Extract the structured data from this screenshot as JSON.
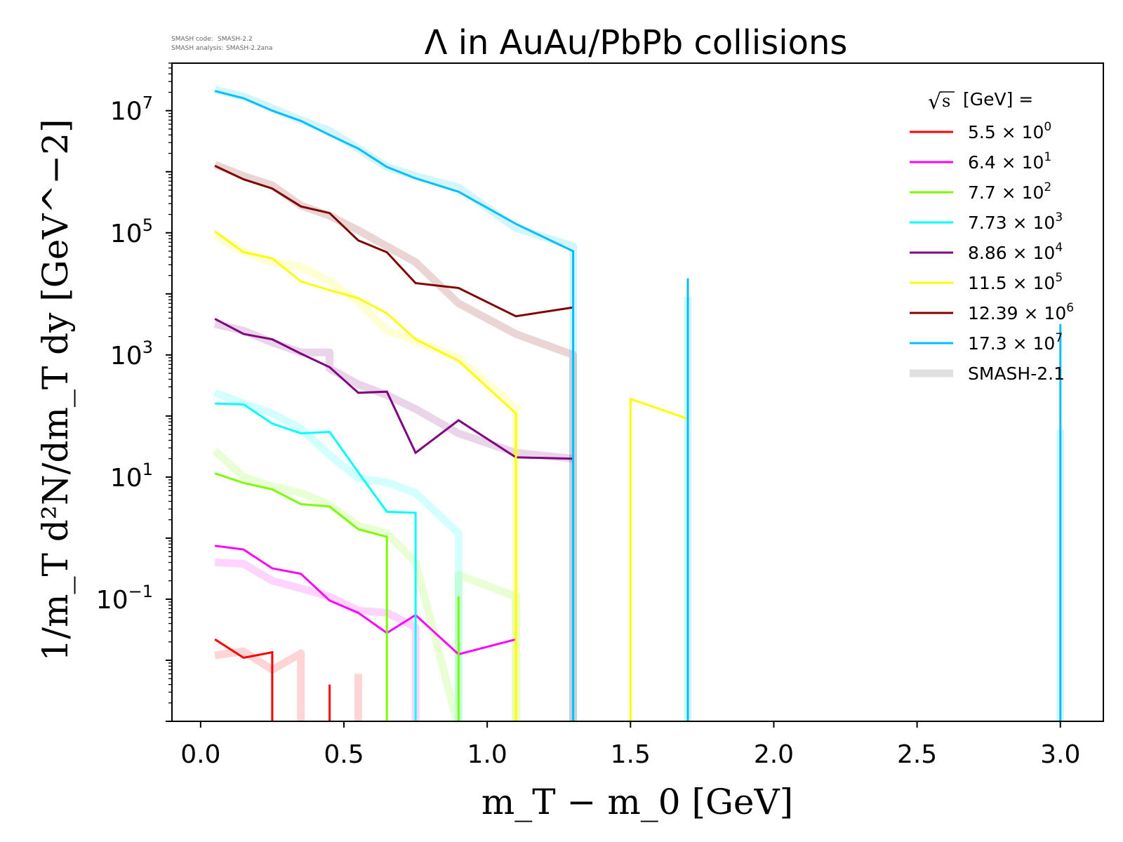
{
  "header": {
    "smash_code_label": "SMASH code:",
    "smash_code_value": "SMASH-2.2",
    "smash_analysis_label": "SMASH analysis:",
    "smash_analysis_value": "SMASH-2.2ana"
  },
  "chart_data": {
    "type": "line",
    "title": "Λ in AuAu/PbPb collisions",
    "xlabel": "m_T − m_0 [GeV]",
    "ylabel": "1/m_T d²N/dm_T dy [GeV^−2]",
    "xlim": [
      -0.1,
      3.15
    ],
    "ylim": [
      0.001,
      60000000
    ],
    "yscale": "log",
    "grid": false,
    "legend_position": "top-right",
    "legend_title": "√s  [GeV] =",
    "x_ticks": [
      "0.0",
      "0.5",
      "1.0",
      "1.5",
      "2.0",
      "2.5",
      "3.0"
    ],
    "y_ticks": [
      {
        "base": "10",
        "exp": "−1",
        "value": 0.1
      },
      {
        "base": "10",
        "exp": "1",
        "value": 10
      },
      {
        "base": "10",
        "exp": "3",
        "value": 1000
      },
      {
        "base": "10",
        "exp": "5",
        "value": 100000
      },
      {
        "base": "10",
        "exp": "7",
        "value": 10000000
      }
    ],
    "series": [
      {
        "name": "5.5 × 10⁰",
        "label_base": "5.5",
        "label_exp": "0",
        "color": "#ff0000",
        "x": [
          0.05,
          0.15,
          0.25,
          0.25,
          null,
          0.45,
          0.45
        ],
        "y": [
          0.022,
          0.011,
          0.0135,
          0.0008,
          null,
          0.0008,
          0.004
        ]
      },
      {
        "name": "6.4 × 10¹",
        "label_base": "6.4",
        "label_exp": "1",
        "color": "#ff00ff",
        "x": [
          0.05,
          0.15,
          0.25,
          0.35,
          0.45,
          0.55,
          0.65,
          0.75,
          0.9,
          1.1
        ],
        "y": [
          0.75,
          0.65,
          0.32,
          0.26,
          0.095,
          0.06,
          0.028,
          0.055,
          0.0125,
          0.022
        ]
      },
      {
        "name": "7.7 × 10²",
        "label_base": "7.7",
        "label_exp": "2",
        "color": "#7cfc00",
        "x": [
          0.05,
          0.15,
          0.25,
          0.35,
          0.45,
          0.55,
          0.65,
          0.65,
          null,
          0.9,
          0.9
        ],
        "y": [
          11.5,
          8,
          6.3,
          3.6,
          3.3,
          1.4,
          1.05,
          0.0008,
          null,
          0.0008,
          0.11
        ]
      },
      {
        "name": "7.73 × 10³",
        "label_base": "7.73",
        "label_exp": "3",
        "color": "#00ffff",
        "x": [
          0.05,
          0.15,
          0.25,
          0.35,
          0.45,
          0.55,
          0.65,
          0.75,
          0.75
        ],
        "y": [
          160,
          155,
          75,
          52,
          55,
          12,
          2.7,
          2.6,
          0.0008
        ]
      },
      {
        "name": "8.86 × 10⁴",
        "label_base": "8.86",
        "label_exp": "4",
        "color": "#800080",
        "x": [
          0.05,
          0.15,
          0.25,
          0.35,
          0.45,
          0.55,
          0.65,
          0.75,
          0.9,
          1.1,
          1.3
        ],
        "y": [
          3900,
          2200,
          1800,
          1050,
          630,
          240,
          250,
          25,
          85,
          21,
          20
        ]
      },
      {
        "name": "11.5 × 10⁵",
        "label_base": "11.5",
        "label_exp": "5",
        "color": "#ffff00",
        "x": [
          0.05,
          0.15,
          0.25,
          0.35,
          0.45,
          0.55,
          0.65,
          0.75,
          0.9,
          1.1,
          1.1,
          null,
          1.5,
          1.5,
          1.7
        ],
        "y": [
          105000,
          48000,
          38000,
          16000,
          11500,
          8500,
          4800,
          1800,
          800,
          110,
          0.0008,
          null,
          0.0008,
          190,
          90
        ]
      },
      {
        "name": "12.39 × 10⁶",
        "label_base": "12.39",
        "label_exp": "6",
        "color": "#800000",
        "x": [
          0.05,
          0.15,
          0.25,
          0.35,
          0.45,
          0.55,
          0.65,
          0.75,
          0.9,
          1.1,
          1.3
        ],
        "y": [
          1250000,
          750000,
          530000,
          270000,
          210000,
          75000,
          48000,
          15000,
          12500,
          4300,
          6000
        ]
      },
      {
        "name": "17.3 × 10⁷",
        "label_base": "17.3",
        "label_exp": "7",
        "color": "#00bfff",
        "x": [
          0.05,
          0.15,
          0.25,
          0.35,
          0.45,
          0.55,
          0.65,
          0.75,
          0.9,
          1.1,
          1.3,
          1.3,
          null,
          1.7,
          1.7,
          null,
          3.0,
          3.0
        ],
        "y": [
          21000000,
          16000000,
          10000000,
          6800000,
          4000000,
          2400000,
          1200000,
          780000,
          470000,
          140000,
          50000,
          0.0008,
          null,
          0.0008,
          18000,
          null,
          0.0008,
          3200
        ]
      }
    ],
    "reference": {
      "name": "SMASH-2.1",
      "color": "#cccccc",
      "series": [
        {
          "color": "#ff0000",
          "x": [
            0.05,
            0.15,
            0.25,
            0.35,
            0.35,
            null,
            0.55,
            0.55
          ],
          "y": [
            0.012,
            0.014,
            0.007,
            0.013,
            0.0008,
            null,
            0.0008,
            0.006
          ]
        },
        {
          "color": "#ff00ff",
          "x": [
            0.05,
            0.15,
            0.25,
            0.35,
            0.45,
            0.55,
            0.65,
            0.75,
            0.75
          ],
          "y": [
            0.4,
            0.38,
            0.2,
            0.15,
            0.11,
            0.065,
            0.06,
            0.035,
            0.0008
          ]
        },
        {
          "color": "#7cfc00",
          "x": [
            0.05,
            0.15,
            0.25,
            0.35,
            0.45,
            0.55,
            0.65,
            0.75,
            0.9,
            0.9,
            1.1,
            1.1
          ],
          "y": [
            27,
            10,
            7,
            5.5,
            3.5,
            1.6,
            1.2,
            0.4,
            0.0008,
            0.25,
            0.11,
            0.0008
          ]
        },
        {
          "color": "#00ffff",
          "x": [
            0.05,
            0.15,
            0.25,
            0.35,
            0.45,
            0.55,
            0.65,
            0.75,
            0.9,
            0.9
          ],
          "y": [
            240,
            160,
            110,
            62,
            23,
            9.5,
            8.2,
            5.5,
            1.2,
            0.0008
          ]
        },
        {
          "color": "#800080",
          "x": [
            0.05,
            0.15,
            0.25,
            0.35,
            0.45,
            0.45,
            0.55,
            0.65,
            0.75,
            0.9,
            1.1,
            1.3
          ],
          "y": [
            3200,
            2500,
            1600,
            1100,
            1100,
            600,
            330,
            220,
            130,
            52,
            25,
            20
          ]
        },
        {
          "color": "#ffff00",
          "x": [
            0.05,
            0.15,
            0.25,
            0.35,
            0.45,
            0.55,
            0.65,
            0.75,
            0.9,
            1.1,
            1.1
          ],
          "y": [
            90000,
            50000,
            33000,
            28000,
            16000,
            7500,
            2500,
            1700,
            900,
            130,
            0.0008
          ]
        },
        {
          "color": "#800000",
          "x": [
            0.05,
            0.15,
            0.25,
            0.35,
            0.45,
            0.55,
            0.65,
            0.75,
            0.9,
            1.1,
            1.3,
            1.3
          ],
          "y": [
            1300000,
            850000,
            600000,
            280000,
            190000,
            110000,
            60000,
            33000,
            7000,
            2200,
            1000,
            0.0008
          ]
        },
        {
          "color": "#00bfff",
          "x": [
            0.05,
            0.15,
            0.25,
            0.35,
            0.45,
            0.55,
            0.65,
            0.75,
            0.9,
            1.1,
            1.3,
            1.3,
            null,
            1.7,
            1.7,
            null,
            3.0,
            3.0
          ],
          "y": [
            22000000,
            17000000,
            11000000,
            7000000,
            4700000,
            2400000,
            1200000,
            850000,
            550000,
            120000,
            60000,
            0.0008,
            null,
            0.0008,
            9000,
            null,
            0.0008,
            60
          ]
        }
      ]
    }
  }
}
